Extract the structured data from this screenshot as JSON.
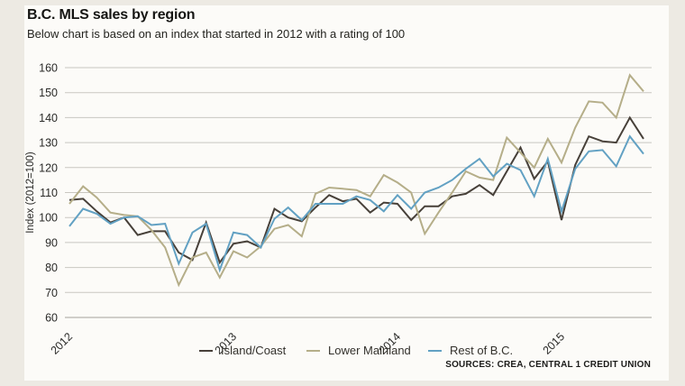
{
  "header": {
    "title": "B.C. MLS sales by region",
    "subtitle": "Below chart is based on an index that started in 2012 with a rating of 100"
  },
  "source": "SOURCES: CREA, CENTRAL 1 CREDIT UNION",
  "colors": {
    "background": "#edeae3",
    "card": "#fcfbf8",
    "gridline": "#c9c7c1",
    "baseline": "#a5a29c",
    "text": "#2a2a28"
  },
  "chart_data": {
    "type": "line",
    "title": "B.C. MLS sales by region",
    "xlabel": "",
    "ylabel": "Index (2012=100)",
    "ylim": [
      60,
      160
    ],
    "ytick_step": 10,
    "grid": "horizontal",
    "legend_position": "bottom",
    "x_unit": "month",
    "x_ticks": [
      {
        "label": "2012",
        "index": 0
      },
      {
        "label": "2013",
        "index": 12
      },
      {
        "label": "2014",
        "index": 24
      },
      {
        "label": "2015",
        "index": 36
      }
    ],
    "series": [
      {
        "name": "Island/Coast",
        "color": "#474039",
        "values": [
          107,
          107.5,
          102.5,
          98,
          100,
          93,
          94.5,
          94.5,
          86,
          83,
          98,
          82,
          89.5,
          90.5,
          88,
          103.5,
          100,
          98.5,
          104,
          109,
          106.5,
          107.5,
          102,
          106,
          105.5,
          99,
          104.5,
          104.5,
          108.5,
          109.5,
          113,
          109,
          118.5,
          128,
          115.5,
          122.5,
          99,
          121,
          132.5,
          130.5,
          130,
          140,
          131.5
        ]
      },
      {
        "name": "Lower Mainland",
        "color": "#b5ae89",
        "values": [
          105.5,
          112.5,
          108,
          102,
          101,
          100.5,
          95,
          88,
          73,
          84,
          86,
          76,
          86.5,
          84,
          88.5,
          95.5,
          97,
          92.5,
          109.5,
          112,
          111.5,
          111,
          108.5,
          117,
          114,
          110,
          93.5,
          102,
          110,
          118.5,
          116,
          115,
          132,
          126,
          120,
          131.5,
          122,
          136,
          146.5,
          146,
          140,
          157,
          150.5
        ]
      },
      {
        "name": "Rest of B.C.",
        "color": "#62a1c3",
        "values": [
          96.5,
          103.5,
          101.5,
          97.5,
          100,
          100.5,
          97,
          97.5,
          81.5,
          94,
          97.5,
          79,
          94,
          93,
          88,
          99.5,
          104,
          99,
          105.5,
          105.5,
          105.5,
          108.5,
          107,
          102.5,
          109,
          103.5,
          110,
          112,
          115,
          119.5,
          123.5,
          116.5,
          121.5,
          119,
          108.5,
          123.5,
          102.5,
          119.5,
          126.5,
          127,
          120.5,
          132.5,
          125.5
        ]
      }
    ]
  }
}
